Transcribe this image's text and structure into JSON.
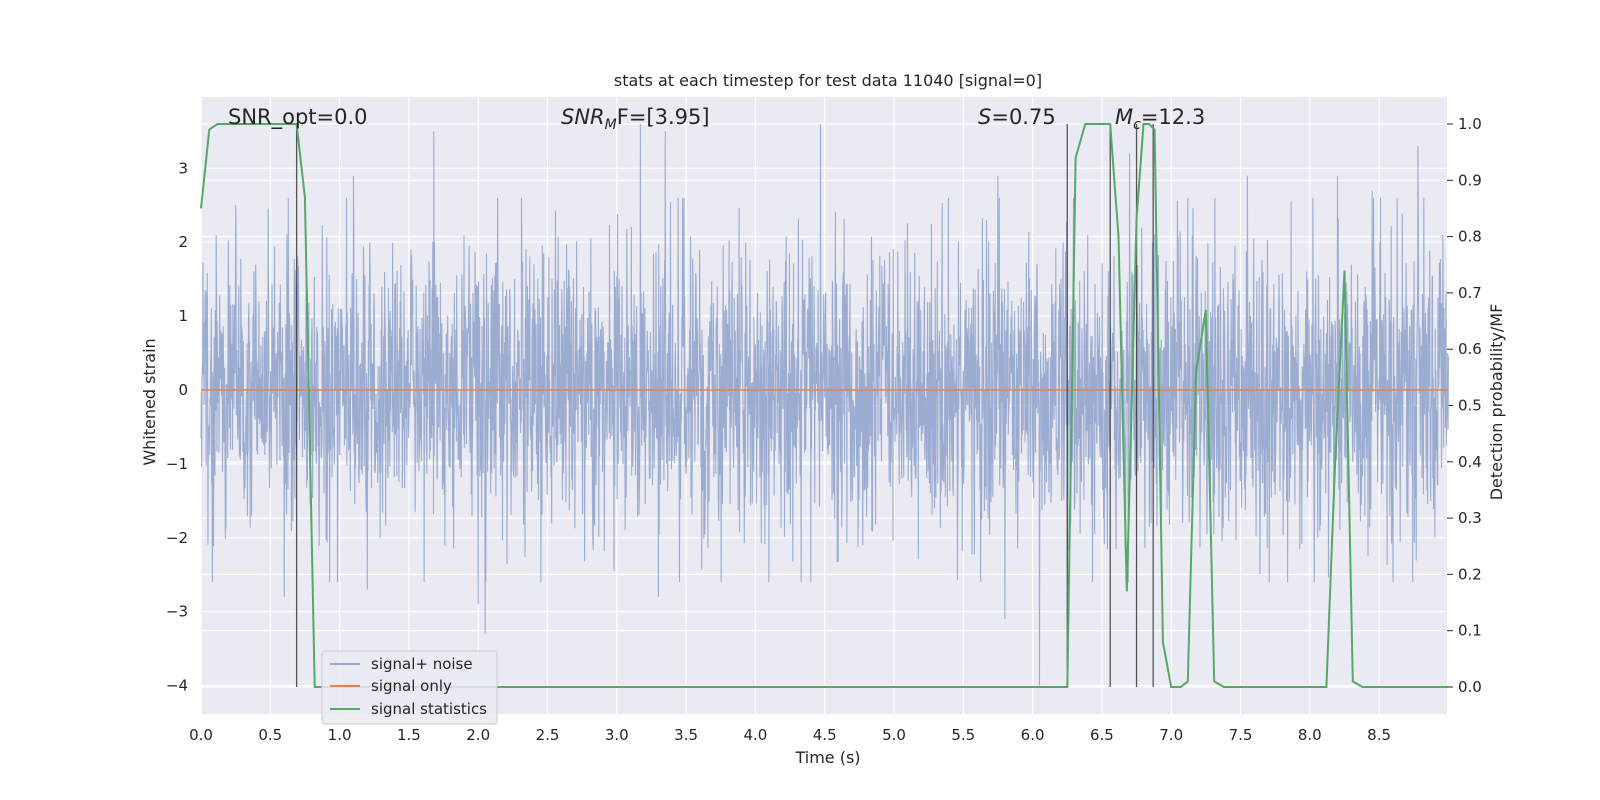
{
  "chart_data": {
    "type": "line",
    "title": "stats at each timestep for test data 11040 [signal=0]",
    "xlabel": "Time (s)",
    "ylabel": "Whitened strain",
    "ylabel_right": "Detection probability/MF",
    "xlim": [
      0.0,
      9.0
    ],
    "ylim": [
      -4.35,
      4.0
    ],
    "ylim_right": [
      -0.048,
      1.048
    ],
    "xticks": [
      "0.0",
      "0.5",
      "1.0",
      "1.5",
      "2.0",
      "2.5",
      "3.0",
      "3.5",
      "4.0",
      "4.5",
      "5.0",
      "5.5",
      "6.0",
      "6.5",
      "7.0",
      "7.5",
      "8.0",
      "8.5"
    ],
    "yticks": [
      "3",
      "2",
      "1",
      "0",
      "−1",
      "−2",
      "−3",
      "−4"
    ],
    "yticks_right": [
      "1.0",
      "0.9",
      "0.8",
      "0.7",
      "0.6",
      "0.5",
      "0.4",
      "0.3",
      "0.2",
      "0.1",
      "0.0"
    ],
    "grid": true,
    "legend_position": "lower-left",
    "annotations": {
      "snr_opt": "SNR_opt=0.0",
      "snr_mf_main": "SNR",
      "snr_mf_sub": "M",
      "snr_mf_tail": "F=[3.95]",
      "s_main": "S",
      "s_tail": "=0.75",
      "mc_main": "M",
      "mc_sub": "c",
      "mc_tail": "=12.3"
    },
    "series": [
      {
        "name": "signal+ noise",
        "color": "#98a9cf",
        "description_values": "noise band about 0, typical amplitude ~±1.3, excursions to about ±3.5",
        "x_range": [
          0.0,
          9.0
        ],
        "envelope": [
          -1.3,
          1.3
        ],
        "spikes": [
          [
            0.25,
            2.5
          ],
          [
            0.6,
            -2.8
          ],
          [
            1.2,
            -2.7
          ],
          [
            1.1,
            2.9
          ],
          [
            1.68,
            3.5
          ],
          [
            2.05,
            -3.3
          ],
          [
            2.0,
            -2.9
          ],
          [
            3.17,
            3.6
          ],
          [
            3.3,
            -2.8
          ],
          [
            3.35,
            3.5
          ],
          [
            4.47,
            3.6
          ],
          [
            4.4,
            -2.6
          ],
          [
            5.8,
            -3.1
          ],
          [
            5.75,
            2.9
          ],
          [
            6.7,
            3.2
          ],
          [
            6.05,
            -4.0
          ],
          [
            7.55,
            -3.0
          ],
          [
            7.55,
            2.9
          ],
          [
            8.2,
            2.9
          ],
          [
            8.45,
            2.7
          ],
          [
            8.78,
            3.3
          ],
          [
            8.6,
            -2.6
          ]
        ]
      },
      {
        "name": "signal only",
        "color": "#dd8452",
        "x": [
          0.0,
          9.0
        ],
        "y": [
          0.0,
          0.0
        ]
      },
      {
        "name": "signal statistics",
        "color": "#55a868",
        "axis": "right",
        "x": [
          0.0,
          0.06,
          0.12,
          0.18,
          0.25,
          0.35,
          0.45,
          0.55,
          0.65,
          0.69,
          0.75,
          0.82,
          0.9,
          1.2,
          2.0,
          3.0,
          4.0,
          5.0,
          6.0,
          6.25,
          6.31,
          6.38,
          6.45,
          6.5,
          6.56,
          6.62,
          6.68,
          6.75,
          6.8,
          6.84,
          6.88,
          6.94,
          7.0,
          7.07,
          7.12,
          7.18,
          7.25,
          7.31,
          7.38,
          7.5,
          8.0,
          8.12,
          8.18,
          8.25,
          8.31,
          8.38,
          8.5,
          9.0
        ],
        "y": [
          0.85,
          0.99,
          1.0,
          1.0,
          1.0,
          1.0,
          1.0,
          1.0,
          1.0,
          1.0,
          0.87,
          0.0,
          0.0,
          0.0,
          0.0,
          0.0,
          0.0,
          0.0,
          0.0,
          0.0,
          0.94,
          1.0,
          1.0,
          1.0,
          1.0,
          0.8,
          0.17,
          0.83,
          1.0,
          1.0,
          0.99,
          0.08,
          0.0,
          0.0,
          0.01,
          0.56,
          0.67,
          0.01,
          0.0,
          0.0,
          0.0,
          0.0,
          0.38,
          0.74,
          0.01,
          0.0,
          0.0,
          0.0
        ]
      }
    ],
    "vertical_markers_x": [
      0.69,
      6.25,
      6.56,
      6.75,
      6.87
    ]
  }
}
